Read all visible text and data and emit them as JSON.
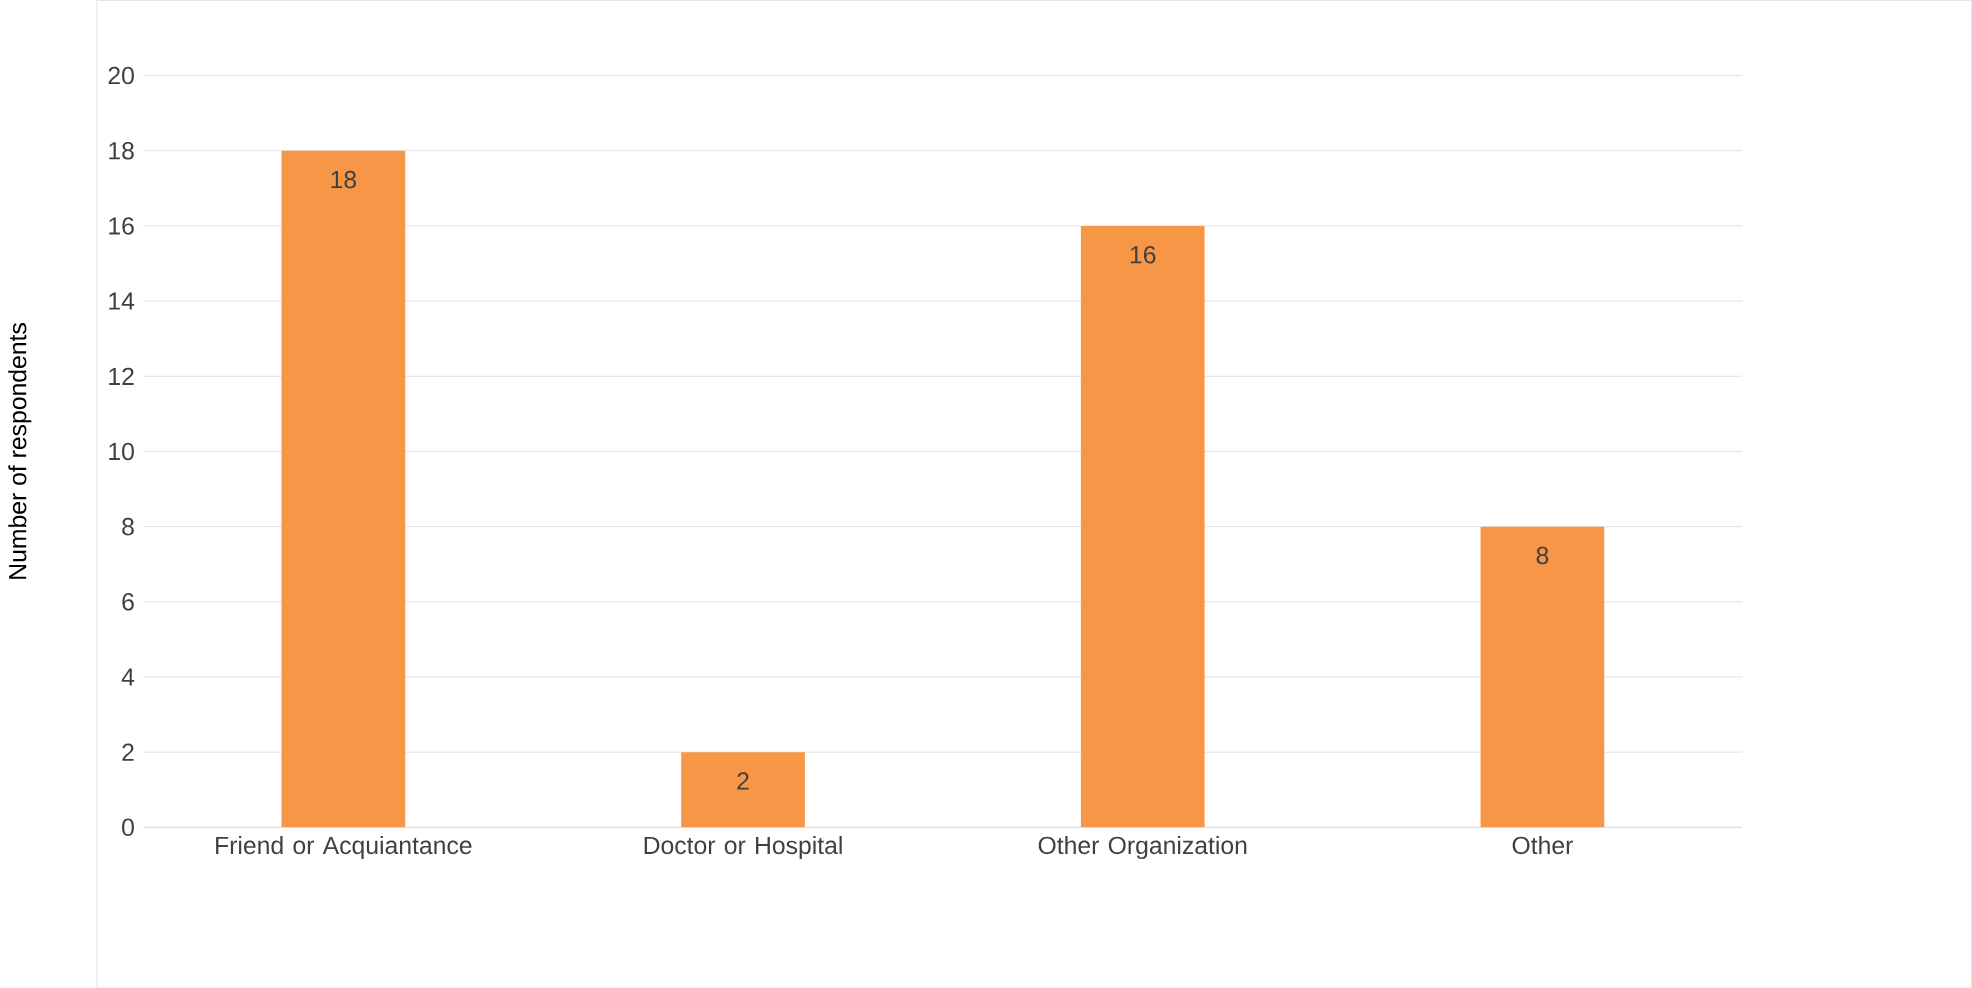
{
  "chart_data": {
    "type": "bar",
    "ylabel": "Number of respondents",
    "categories": [
      "Friend or Acquiantance",
      "Doctor or Hospital",
      "Other Organization",
      "Other"
    ],
    "values": [
      18,
      2,
      16,
      8
    ],
    "color": "#f79646",
    "ylim": [
      0,
      20
    ],
    "yticks": [
      0,
      2,
      4,
      6,
      8,
      10,
      12,
      14,
      16,
      18,
      20
    ],
    "grid": "y",
    "data_labels": true
  }
}
